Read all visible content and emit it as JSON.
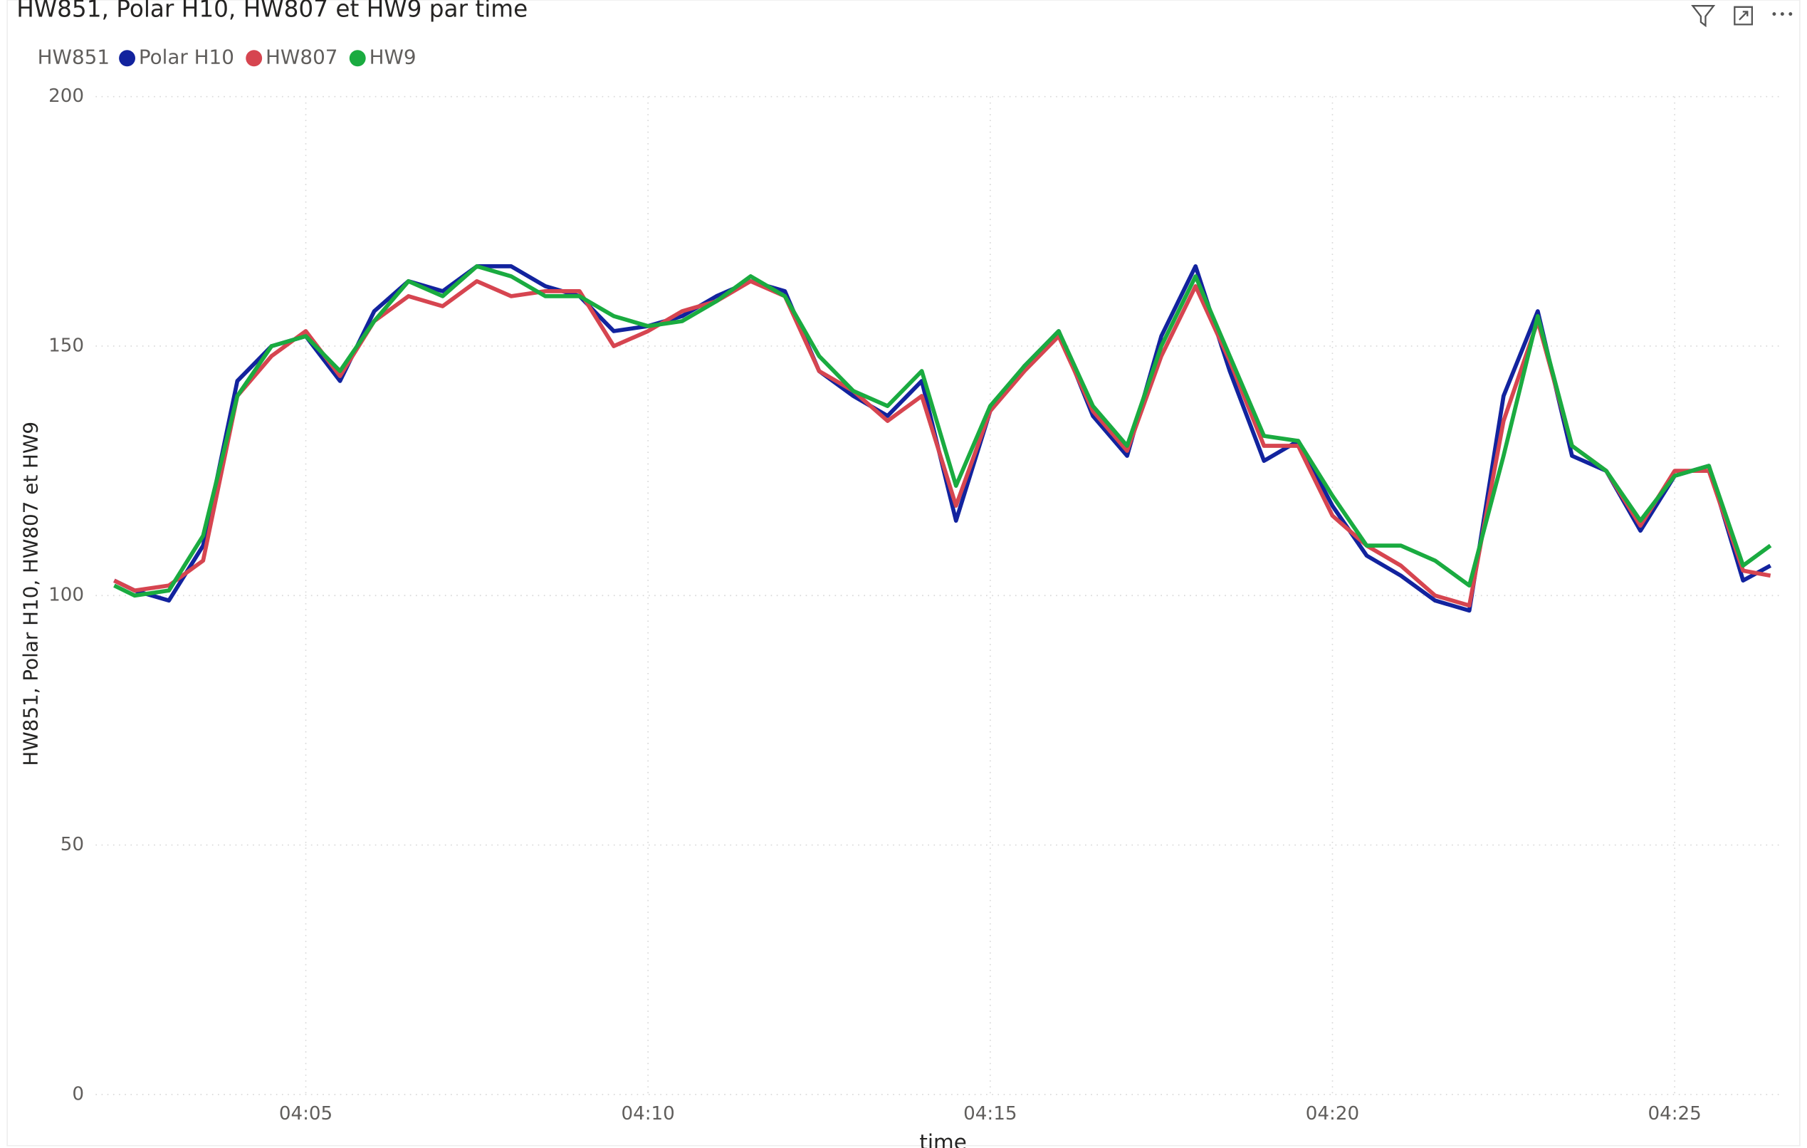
{
  "chart_data": {
    "type": "line",
    "title": "HW851, Polar H10, HW807 et HW9 par time",
    "legend_title": "HW851",
    "xlabel": "time",
    "ylabel": "HW851, Polar H10, HW807 et HW9",
    "x": [
      242.2,
      242.5,
      243,
      243.5,
      244,
      244.5,
      245,
      245.5,
      246,
      246.5,
      247,
      247.5,
      248,
      248.5,
      249,
      249.5,
      250,
      250.5,
      251,
      251.5,
      252,
      252.5,
      253,
      253.5,
      254,
      254.5,
      255,
      255.5,
      256,
      256.5,
      257,
      257.5,
      258,
      258.5,
      259,
      259.5,
      260,
      260.5,
      261,
      261.5,
      262,
      262.5,
      263,
      263.5,
      264,
      264.5,
      265,
      265.5,
      266,
      266.4
    ],
    "series": [
      {
        "name": "Polar H10",
        "color": "#12239e",
        "values": [
          103,
          101,
          99,
          110,
          143,
          150,
          152,
          143,
          157,
          163,
          161,
          166,
          166,
          162,
          160,
          153,
          154,
          156,
          160,
          163,
          161,
          145,
          140,
          136,
          143,
          115,
          137,
          146,
          153,
          136,
          128,
          152,
          166,
          145,
          127,
          131,
          118,
          108,
          104,
          99,
          97,
          140,
          157,
          128,
          125,
          113,
          124,
          126,
          103,
          106
        ]
      },
      {
        "name": "HW807",
        "color": "#d64550",
        "values": [
          103,
          101,
          102,
          107,
          140,
          148,
          153,
          144,
          155,
          160,
          158,
          163,
          160,
          161,
          161,
          150,
          153,
          157,
          159,
          163,
          160,
          145,
          141,
          135,
          140,
          118,
          137,
          145,
          152,
          137,
          129,
          148,
          162,
          147,
          130,
          130,
          116,
          110,
          106,
          100,
          98,
          135,
          155,
          130,
          125,
          114,
          125,
          125,
          105,
          104
        ]
      },
      {
        "name": "HW9",
        "color": "#1aab40",
        "values": [
          102,
          100,
          101,
          112,
          140,
          150,
          152,
          145,
          155,
          163,
          160,
          166,
          164,
          160,
          160,
          156,
          154,
          155,
          159,
          164,
          160,
          148,
          141,
          138,
          145,
          122,
          138,
          146,
          153,
          138,
          130,
          150,
          164,
          148,
          132,
          131,
          120,
          110,
          110,
          107,
          102,
          128,
          156,
          130,
          125,
          115,
          124,
          126,
          106,
          110
        ]
      }
    ],
    "xlim": [
      241.93,
      266.59
    ],
    "xticks": [
      {
        "value": 245,
        "label": "04:05"
      },
      {
        "value": 250,
        "label": "04:10"
      },
      {
        "value": 255,
        "label": "04:15"
      },
      {
        "value": 260,
        "label": "04:20"
      },
      {
        "value": 265,
        "label": "04:25"
      }
    ],
    "ylim": [
      0,
      200
    ],
    "yticks": [
      0,
      50,
      100,
      150,
      200
    ],
    "grid": true
  }
}
